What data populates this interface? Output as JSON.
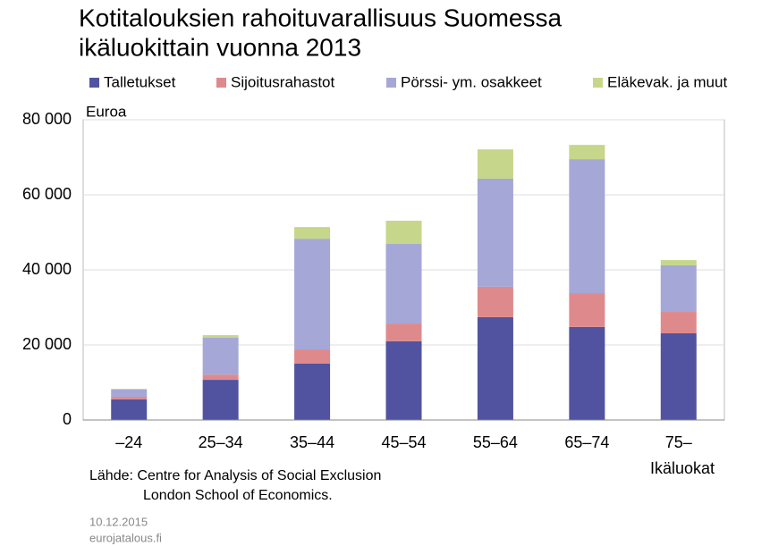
{
  "chart_data": {
    "type": "stacked_bar",
    "title": [
      "Kotitalouksien rahoituvarallisuus Suomessa",
      "ikäluokittain vuonna 2013"
    ],
    "y_label": "Euroa",
    "x_label": "Ikäluokat",
    "categories": [
      "–24",
      "25–34",
      "35–44",
      "45–54",
      "55–64",
      "65–74",
      "75–"
    ],
    "series": [
      {
        "name": "Talletukset",
        "color": "#5153a0",
        "values": [
          5500,
          10700,
          15000,
          21000,
          27400,
          24800,
          23100
        ]
      },
      {
        "name": "Sijoitusrahastot",
        "color": "#de8a8c",
        "values": [
          700,
          1400,
          3800,
          4700,
          8100,
          9000,
          5700
        ]
      },
      {
        "name": "Pörssi- ym. osakkeet",
        "color": "#a5a7d6",
        "values": [
          1900,
          9800,
          29500,
          21200,
          28800,
          35700,
          12400
        ]
      },
      {
        "name": "Eläkevak. ja muut",
        "color": "#c6d68a",
        "values": [
          200,
          700,
          3100,
          6200,
          7800,
          3800,
          1400
        ]
      }
    ],
    "ylim": [
      0,
      80000
    ],
    "yticks": [
      0,
      {
        "value": 20000,
        "label": "20 000"
      },
      {
        "value": 40000,
        "label": "40 000"
      },
      {
        "value": 60000,
        "label": "60 000"
      },
      {
        "value": 80000,
        "label": "80 000"
      }
    ],
    "grid": true,
    "legend": "top",
    "source": [
      "Lähde: Centre for Analysis of Social Exclusion",
      "London School of Economics."
    ],
    "date": "10.12.2015",
    "site": "eurojatalous.fi"
  }
}
